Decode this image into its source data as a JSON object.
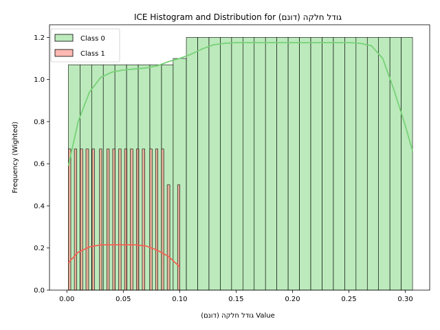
{
  "chart_data": {
    "type": "histogram",
    "title": "ICE Histogram and Distribution for גודל חלקה (דונם)",
    "xlabel": "גודל חלקה (דונם) Value",
    "ylabel": "Frequency (Wighted)",
    "xlim": [
      -0.0154,
      0.3216
    ],
    "ylim": [
      0,
      1.26
    ],
    "x_ticks": [
      0.0,
      0.05,
      0.1,
      0.15,
      0.2,
      0.25,
      0.3
    ],
    "x_tick_labels": [
      "0.00",
      "0.05",
      "0.10",
      "0.15",
      "0.20",
      "0.25",
      "0.30"
    ],
    "y_ticks": [
      0.0,
      0.2,
      0.4,
      0.6,
      0.8,
      1.0,
      1.2
    ],
    "y_tick_labels": [
      "0.0",
      "0.2",
      "0.4",
      "0.6",
      "0.8",
      "1.0",
      "1.2"
    ],
    "legend_position": "upper-left",
    "series": [
      {
        "name": "Class 0",
        "fill": "#90dc90",
        "fill_opacity": 0.6,
        "edge": "#000000",
        "kde_color": "#77d177",
        "bin_start": 0.0013,
        "bin_width": 0.0102,
        "bins": [
          {
            "from": 0.0013,
            "to": 0.0942,
            "value": 1.07
          },
          {
            "from": 0.0942,
            "to": 0.1059,
            "value": 1.1
          },
          {
            "from": 0.1059,
            "to": 0.3064,
            "value": 1.2
          }
        ],
        "kde": [
          [
            0.0013,
            0.59
          ],
          [
            0.01,
            0.8
          ],
          [
            0.02,
            0.94
          ],
          [
            0.03,
            1.01
          ],
          [
            0.04,
            1.035
          ],
          [
            0.05,
            1.045
          ],
          [
            0.06,
            1.05
          ],
          [
            0.07,
            1.055
          ],
          [
            0.08,
            1.065
          ],
          [
            0.09,
            1.085
          ],
          [
            0.1,
            1.1
          ],
          [
            0.11,
            1.12
          ],
          [
            0.12,
            1.145
          ],
          [
            0.13,
            1.165
          ],
          [
            0.14,
            1.172
          ],
          [
            0.15,
            1.175
          ],
          [
            0.18,
            1.175
          ],
          [
            0.22,
            1.175
          ],
          [
            0.25,
            1.175
          ],
          [
            0.26,
            1.172
          ],
          [
            0.27,
            1.16
          ],
          [
            0.28,
            1.1
          ],
          [
            0.29,
            0.95
          ],
          [
            0.3,
            0.78
          ],
          [
            0.3064,
            0.66
          ]
        ]
      },
      {
        "name": "Class 1",
        "fill": "#ff8a80",
        "fill_opacity": 0.6,
        "edge": "#000000",
        "kde_color": "#f26152",
        "bars": [
          {
            "from": 0.0013,
            "to": 0.0035,
            "value": 0.67
          },
          {
            "from": 0.0066,
            "to": 0.0087,
            "value": 0.67
          },
          {
            "from": 0.0118,
            "to": 0.014,
            "value": 0.67
          },
          {
            "from": 0.0169,
            "to": 0.0193,
            "value": 0.67
          },
          {
            "from": 0.0223,
            "to": 0.0245,
            "value": 0.67
          },
          {
            "from": 0.0289,
            "to": 0.031,
            "value": 0.67
          },
          {
            "from": 0.0354,
            "to": 0.0376,
            "value": 0.67
          },
          {
            "from": 0.0406,
            "to": 0.0428,
            "value": 0.67
          },
          {
            "from": 0.0459,
            "to": 0.0481,
            "value": 0.67
          },
          {
            "from": 0.0511,
            "to": 0.0533,
            "value": 0.67
          },
          {
            "from": 0.0562,
            "to": 0.0586,
            "value": 0.67
          },
          {
            "from": 0.0616,
            "to": 0.0638,
            "value": 0.67
          },
          {
            "from": 0.0668,
            "to": 0.0691,
            "value": 0.67
          },
          {
            "from": 0.0734,
            "to": 0.0756,
            "value": 0.67
          },
          {
            "from": 0.0786,
            "to": 0.0807,
            "value": 0.67
          },
          {
            "from": 0.0838,
            "to": 0.0859,
            "value": 0.67
          },
          {
            "from": 0.0889,
            "to": 0.0913,
            "value": 0.5
          },
          {
            "from": 0.0981,
            "to": 0.1002,
            "value": 0.5
          }
        ],
        "kde": [
          [
            0.0013,
            0.13
          ],
          [
            0.01,
            0.18
          ],
          [
            0.02,
            0.205
          ],
          [
            0.03,
            0.215
          ],
          [
            0.04,
            0.215
          ],
          [
            0.05,
            0.215
          ],
          [
            0.06,
            0.215
          ],
          [
            0.07,
            0.21
          ],
          [
            0.08,
            0.19
          ],
          [
            0.09,
            0.16
          ],
          [
            0.1002,
            0.11
          ]
        ]
      }
    ]
  }
}
